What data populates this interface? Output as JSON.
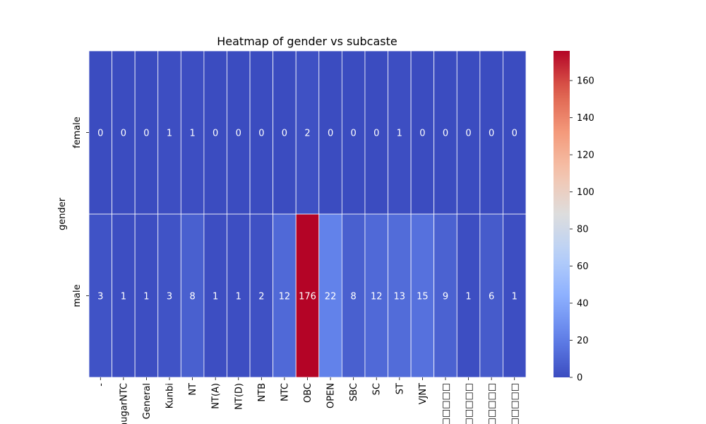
{
  "chart_data": {
    "type": "heatmap",
    "title": "Heatmap of gender vs subcaste",
    "xlabel": "",
    "ylabel": "gender",
    "rows": [
      "female",
      "male"
    ],
    "columns": [
      "-",
      "BhugarNTC",
      "General",
      "Kunbi",
      "NT",
      "NT(A)",
      "NT(D)",
      "NTB",
      "NTC",
      "OBC",
      "OPEN",
      "SBC",
      "SC",
      "ST",
      "VJNT",
      "□□□□□□□",
      "□□□□□□",
      "□□□□□",
      "□□□□□□□"
    ],
    "values": [
      [
        0,
        0,
        0,
        1,
        1,
        0,
        0,
        0,
        0,
        2,
        0,
        0,
        0,
        1,
        0,
        0,
        0,
        0,
        0
      ],
      [
        3,
        1,
        1,
        3,
        8,
        1,
        1,
        2,
        12,
        176,
        22,
        8,
        12,
        13,
        15,
        9,
        1,
        6,
        1
      ]
    ],
    "colormap": "coolwarm",
    "vmin": 0,
    "vmax": 176,
    "colorbar_ticks": [
      0,
      20,
      40,
      60,
      80,
      100,
      120,
      140,
      160
    ],
    "annotations": true,
    "grid": false,
    "cell_border_color": "#ffffff"
  }
}
